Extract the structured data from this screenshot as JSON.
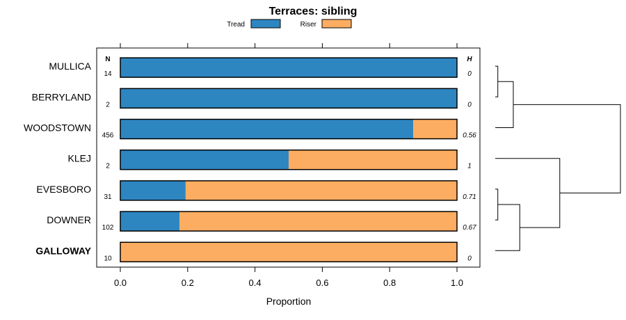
{
  "chart_data": {
    "type": "bar",
    "orientation": "horizontal",
    "stacked": true,
    "title": "Terraces: sibling",
    "xlabel": "Proportion",
    "ylabel": "",
    "xlim": [
      0,
      1
    ],
    "xticks": [
      "0.0",
      "0.2",
      "0.4",
      "0.6",
      "0.8",
      "1.0"
    ],
    "xtick_values": [
      0,
      0.2,
      0.4,
      0.6,
      0.8,
      1.0
    ],
    "legend": {
      "position": "top",
      "entries": [
        "Tread",
        "Riser"
      ]
    },
    "colors": {
      "Tread": "#2e86c1",
      "Riser": "#fdad61",
      "outline": "#000000",
      "frame": "#000000"
    },
    "column_headers": {
      "n": "N",
      "h": "H"
    },
    "categories": [
      "MULLICA",
      "BERRYLAND",
      "WOODSTOWN",
      "KLEJ",
      "EVESBORO",
      "DOWNER",
      "GALLOWAY"
    ],
    "bold_categories": [
      "GALLOWAY"
    ],
    "n": [
      "14",
      "2",
      "456",
      "2",
      "31",
      "102",
      "10"
    ],
    "h": [
      "0",
      "0",
      "0.56",
      "1",
      "0.71",
      "0.67",
      "0"
    ],
    "series": [
      {
        "name": "Tread",
        "values": [
          1.0,
          1.0,
          0.87,
          0.5,
          0.194,
          0.176,
          0.0
        ]
      },
      {
        "name": "Riser",
        "values": [
          0.0,
          0.0,
          0.13,
          0.5,
          0.806,
          0.824,
          1.0
        ]
      }
    ],
    "dendrogram": {
      "description": "hierarchical clustering of the categories, heights in relative units",
      "merges": [
        {
          "left": "MULLICA",
          "right": "BERRYLAND",
          "height": 0.02
        },
        {
          "left": "MULLICA+BERRYLAND",
          "right": "WOODSTOWN",
          "height": 0.14
        },
        {
          "left": "EVESBORO",
          "right": "DOWNER",
          "height": 0.02
        },
        {
          "left": "EVESBORO+DOWNER",
          "right": "GALLOWAY",
          "height": 0.19
        },
        {
          "left": "KLEJ",
          "right": "EVESBORO+DOWNER+GALLOWAY",
          "height": 0.5
        },
        {
          "left": "MULLICA+BERRYLAND+WOODSTOWN",
          "right": "KLEJ+EVESBORO+DOWNER+GALLOWAY",
          "height": 0.97
        }
      ]
    }
  }
}
